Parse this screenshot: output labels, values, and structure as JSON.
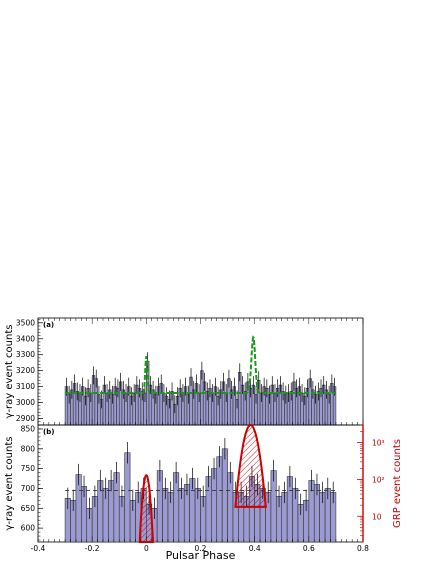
{
  "chart_data": [
    {
      "panel": "(a)",
      "type": "histogram",
      "ylabel": "γ-ray event counts",
      "xlim": [
        -0.4,
        0.8
      ],
      "ylim": [
        2860,
        3530
      ],
      "yticks": [
        2900,
        3000,
        3100,
        3200,
        3300,
        3400,
        3500
      ],
      "colors": {
        "bars": "#9b9bd1",
        "edge": "#333333",
        "model": "#1a9a1a"
      },
      "bin_width": 0.01,
      "x_start": -0.3,
      "values": [
        3100,
        3050,
        3080,
        3120,
        3070,
        3060,
        3100,
        3040,
        3090,
        3060,
        3170,
        3150,
        3050,
        3020,
        3110,
        3060,
        3080,
        3050,
        3100,
        3090,
        3130,
        3080,
        3060,
        3100,
        3040,
        3060,
        3110,
        3090,
        3070,
        3060,
        3260,
        3110,
        3080,
        3050,
        3100,
        3120,
        3060,
        3040,
        3020,
        3070,
        2990,
        3040,
        3090,
        3060,
        3100,
        3050,
        3160,
        3080,
        3120,
        3060,
        3200,
        3130,
        3070,
        3090,
        3060,
        3100,
        3040,
        3080,
        3130,
        3060,
        3150,
        3080,
        3100,
        3020,
        3190,
        3110,
        3070,
        3130,
        3090,
        3110,
        3050,
        3140,
        3060,
        3100,
        3090,
        3050,
        3110,
        3060,
        3090,
        3110,
        3070,
        3050,
        3060,
        3070,
        3130,
        3090,
        3100,
        3060,
        3040,
        3090,
        3150,
        3080,
        3050,
        3070,
        3090,
        3110,
        3080,
        3050,
        3120,
        3100
      ],
      "errors_sigma": 56,
      "model": {
        "baseline": 3060,
        "peaks": [
          {
            "center": 0.0,
            "amplitude": 230,
            "sigma": 0.004
          },
          {
            "center": 0.395,
            "amplitude": 350,
            "sigma": 0.007
          }
        ]
      }
    },
    {
      "panel": "(b)",
      "type": "histogram",
      "xlabel": "Pulsar Phase",
      "ylabel": "γ-ray event counts",
      "y2label": "GRP event counts",
      "xlim": [
        -0.4,
        0.8
      ],
      "xticks": [
        -0.4,
        -0.2,
        0,
        0.2,
        0.4,
        0.6,
        0.8
      ],
      "xticklabels": [
        "-0.4",
        "-0.2",
        "0",
        "0.2",
        "0.4",
        "0.6",
        "0.8"
      ],
      "ylim": [
        565,
        860
      ],
      "yticks": [
        600,
        650,
        700,
        750,
        800,
        850
      ],
      "y2_log_range": [
        2,
        3000
      ],
      "y2_ticklabels": [
        "10",
        "10²",
        "10³"
      ],
      "colors": {
        "bars": "#9b9bd1",
        "edge": "#333333",
        "baseline": "#333333",
        "grp": "#cc0000"
      },
      "bin_width": 0.02,
      "x_start": -0.3,
      "values": [
        675,
        670,
        735,
        705,
        650,
        680,
        720,
        700,
        720,
        740,
        680,
        790,
        670,
        690,
        700,
        660,
        650,
        745,
        700,
        690,
        740,
        700,
        710,
        725,
        700,
        680,
        730,
        750,
        780,
        800,
        740,
        690,
        690,
        680,
        730,
        710,
        700,
        690,
        745,
        680,
        690,
        730,
        700,
        660,
        670,
        720,
        710,
        690,
        700,
        690
      ],
      "errors_sigma": 27,
      "baseline": 695,
      "grp": {
        "main_pulse": {
          "center": 0.0,
          "peak": 130,
          "sigma": 0.0085
        },
        "interpulse": {
          "center": 0.385,
          "peak": 3000,
          "sigma": 0.0175
        }
      }
    }
  ]
}
